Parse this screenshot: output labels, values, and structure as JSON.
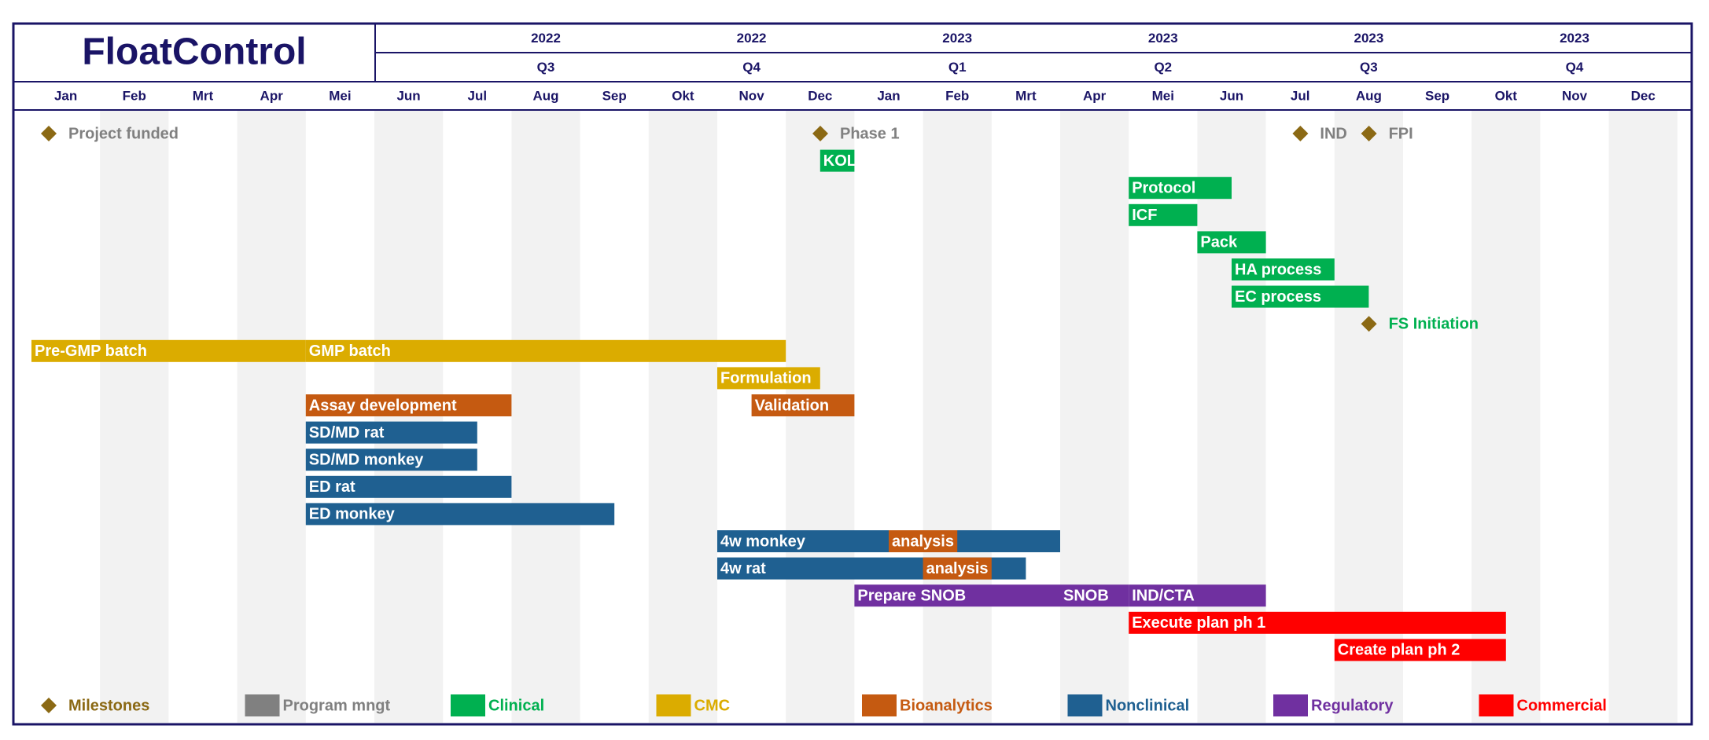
{
  "header": {
    "title": "FloatControl"
  },
  "colors": {
    "frame": "#1a1466",
    "stripe": "#f2f2f2",
    "milestone": "#8b6914",
    "program": "#808080",
    "clinical": "#00b050",
    "cmc": "#dbac00",
    "bioanalytics": "#c55a11",
    "nonclinical": "#1f6091",
    "regulatory": "#7030a0",
    "commercial": "#ff0000"
  },
  "chart_data": {
    "type": "gantt",
    "months": [
      "Jan",
      "Feb",
      "Mrt",
      "Apr",
      "Mei",
      "Jun",
      "Jul",
      "Aug",
      "Sep",
      "Okt",
      "Nov",
      "Dec",
      "Jan",
      "Feb",
      "Mrt",
      "Apr",
      "Mei",
      "Jun",
      "Jul",
      "Aug",
      "Sep",
      "Okt",
      "Nov",
      "Dec"
    ],
    "years": [
      "2022",
      "2022",
      "2023",
      "2023",
      "2023",
      "2023"
    ],
    "quarters": [
      "Q3",
      "Q4",
      "Q1",
      "Q2",
      "Q3",
      "Q4"
    ],
    "milestones": [
      {
        "label": "Project funded",
        "month": 0,
        "row": 0,
        "category": "program"
      },
      {
        "label": "Phase 1",
        "month": 11.25,
        "row": 0,
        "category": "program"
      },
      {
        "label": "IND",
        "month": 18.25,
        "row": 0,
        "category": "program"
      },
      {
        "label": "FPI",
        "month": 19.25,
        "row": 0,
        "category": "program"
      },
      {
        "label": "FS Initiation",
        "month": 19.25,
        "row": 7,
        "category": "clinical"
      }
    ],
    "tasks": [
      {
        "label": "KOL",
        "start": 11.5,
        "end": 12,
        "row": 1,
        "category": "clinical"
      },
      {
        "label": "Protocol",
        "start": 16,
        "end": 17.5,
        "row": 2,
        "category": "clinical"
      },
      {
        "label": "ICF",
        "start": 16,
        "end": 17,
        "row": 3,
        "category": "clinical"
      },
      {
        "label": "Pack",
        "start": 17,
        "end": 18,
        "row": 4,
        "category": "clinical"
      },
      {
        "label": "HA process",
        "start": 17.5,
        "end": 19,
        "row": 5,
        "category": "clinical"
      },
      {
        "label": "EC process",
        "start": 17.5,
        "end": 19.5,
        "row": 6,
        "category": "clinical"
      },
      {
        "label": "Pre-GMP batch",
        "start": 0,
        "end": 4,
        "row": 8,
        "category": "cmc"
      },
      {
        "label": "GMP batch",
        "start": 4,
        "end": 11,
        "row": 8,
        "category": "cmc"
      },
      {
        "label": "Formulation",
        "start": 10,
        "end": 11.5,
        "row": 9,
        "category": "cmc"
      },
      {
        "label": "Assay development",
        "start": 4,
        "end": 7,
        "row": 10,
        "category": "bioanalytics"
      },
      {
        "label": "Validation",
        "start": 10.5,
        "end": 12,
        "row": 10,
        "category": "bioanalytics"
      },
      {
        "label": "SD/MD rat",
        "start": 4,
        "end": 6.5,
        "row": 11,
        "category": "nonclinical"
      },
      {
        "label": "SD/MD monkey",
        "start": 4,
        "end": 6.5,
        "row": 12,
        "category": "nonclinical"
      },
      {
        "label": "ED rat",
        "start": 4,
        "end": 7,
        "row": 13,
        "category": "nonclinical"
      },
      {
        "label": "ED monkey",
        "start": 4,
        "end": 8.5,
        "row": 14,
        "category": "nonclinical"
      },
      {
        "label": "4w monkey",
        "start": 10,
        "end": 15,
        "row": 15,
        "category": "nonclinical"
      },
      {
        "label": "analysis",
        "start": 12.5,
        "end": 13.5,
        "row": 15,
        "category": "bioanalytics"
      },
      {
        "label": "4w rat",
        "start": 10,
        "end": 14.5,
        "row": 16,
        "category": "nonclinical"
      },
      {
        "label": "analysis",
        "start": 13,
        "end": 14,
        "row": 16,
        "category": "bioanalytics"
      },
      {
        "label": "Prepare SNOB",
        "start": 12,
        "end": 15,
        "row": 17,
        "category": "regulatory"
      },
      {
        "label": "SNOB",
        "start": 15,
        "end": 16,
        "row": 17,
        "category": "regulatory"
      },
      {
        "label": "IND/CTA",
        "start": 16,
        "end": 18,
        "row": 17,
        "category": "regulatory"
      },
      {
        "label": "Execute plan ph 1",
        "start": 16,
        "end": 21.5,
        "row": 18,
        "category": "commercial"
      },
      {
        "label": "Create plan ph 2",
        "start": 19,
        "end": 21.5,
        "row": 19,
        "category": "commercial"
      }
    ],
    "legend": [
      {
        "label": "Milestones",
        "category": "milestone",
        "shape": "diamond"
      },
      {
        "label": "Program mngt",
        "category": "program",
        "shape": "box"
      },
      {
        "label": "Clinical",
        "category": "clinical",
        "shape": "box"
      },
      {
        "label": "CMC",
        "category": "cmc",
        "shape": "box"
      },
      {
        "label": "Bioanalytics",
        "category": "bioanalytics",
        "shape": "box"
      },
      {
        "label": "Nonclinical",
        "category": "nonclinical",
        "shape": "box"
      },
      {
        "label": "Regulatory",
        "category": "regulatory",
        "shape": "box"
      },
      {
        "label": "Commercial",
        "category": "commercial",
        "shape": "box"
      }
    ]
  }
}
